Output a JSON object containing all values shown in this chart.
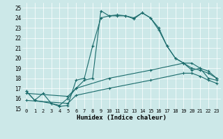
{
  "title": "",
  "xlabel": "Humidex (Indice chaleur)",
  "background_color": "#cce8e8",
  "line_color": "#1a6b6b",
  "xlim": [
    -0.5,
    23.5
  ],
  "ylim": [
    15,
    25.5
  ],
  "yticks": [
    15,
    16,
    17,
    18,
    19,
    20,
    21,
    22,
    23,
    24,
    25
  ],
  "xticks": [
    0,
    1,
    2,
    3,
    4,
    5,
    6,
    7,
    8,
    9,
    10,
    11,
    12,
    13,
    14,
    15,
    16,
    17,
    18,
    19,
    20,
    21,
    22,
    23
  ],
  "s1_x": [
    0,
    1,
    2,
    3,
    4,
    5,
    6,
    7,
    8,
    9,
    10,
    11,
    12,
    13,
    14,
    15,
    16,
    17,
    18,
    19,
    20,
    21,
    22,
    23
  ],
  "s1_y": [
    16.7,
    15.8,
    16.5,
    15.5,
    15.2,
    15.3,
    17.8,
    18.0,
    21.2,
    24.0,
    24.2,
    24.3,
    24.2,
    23.9,
    24.5,
    24.0,
    22.8,
    21.2,
    20.0,
    19.5,
    18.8,
    19.0,
    18.0,
    17.8
  ],
  "s2_x": [
    0,
    1,
    3,
    4,
    5,
    6,
    7,
    8,
    9,
    10,
    11,
    12,
    13,
    14,
    15,
    16,
    17,
    18,
    19,
    20,
    21,
    22,
    23
  ],
  "s2_y": [
    16.7,
    15.8,
    15.5,
    15.3,
    16.0,
    17.0,
    17.8,
    18.0,
    24.7,
    24.2,
    24.2,
    24.2,
    24.0,
    24.5,
    24.0,
    23.0,
    21.2,
    20.0,
    19.5,
    19.0,
    18.8,
    18.5,
    18.0
  ],
  "s3_x": [
    0,
    5,
    6,
    10,
    15,
    19,
    20,
    21,
    22,
    23
  ],
  "s3_y": [
    16.5,
    16.2,
    17.0,
    18.0,
    18.8,
    19.5,
    19.5,
    19.0,
    18.7,
    18.0
  ],
  "s4_x": [
    0,
    5,
    6,
    10,
    15,
    19,
    20,
    21,
    22,
    23
  ],
  "s4_y": [
    15.8,
    15.5,
    16.3,
    17.0,
    17.8,
    18.5,
    18.5,
    18.2,
    17.8,
    17.5
  ]
}
